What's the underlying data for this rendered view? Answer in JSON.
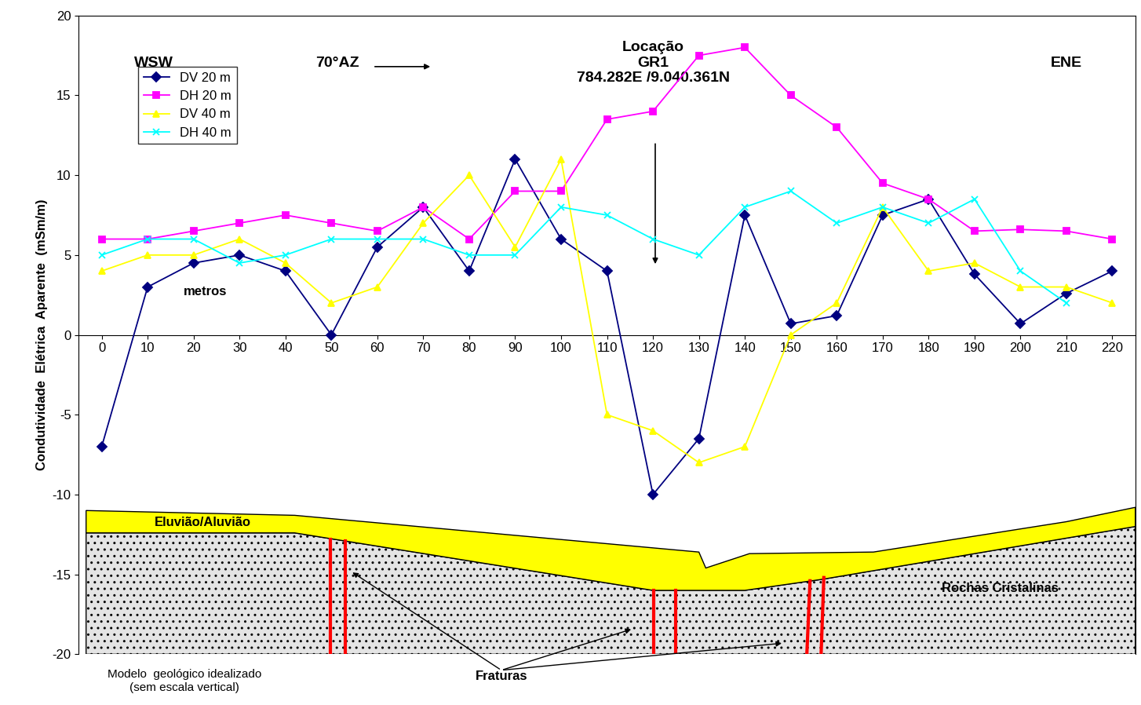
{
  "chart_data": {
    "type": "line",
    "x": [
      0,
      10,
      20,
      30,
      40,
      50,
      60,
      70,
      80,
      90,
      100,
      110,
      120,
      130,
      140,
      150,
      160,
      170,
      180,
      190,
      200,
      210,
      220
    ],
    "xlim": [
      -5,
      225
    ],
    "xticks": [
      0,
      10,
      20,
      30,
      40,
      50,
      60,
      70,
      80,
      90,
      100,
      110,
      120,
      130,
      140,
      150,
      160,
      170,
      180,
      190,
      200,
      210,
      220
    ],
    "ylim": [
      -20,
      20
    ],
    "yticks": [
      -20,
      -15,
      -10,
      -5,
      0,
      5,
      10,
      15,
      20
    ],
    "y_label": "Condutividade  Elétrica  Aparente  (mSm/m)",
    "legend": "upper left",
    "series": [
      {
        "name": "DV 20 m",
        "color": "#000080",
        "marker": "diamond",
        "line_style": "solid",
        "values": [
          -7,
          3,
          4.5,
          5,
          4,
          0,
          5.5,
          8,
          4,
          11,
          6,
          4,
          -10,
          -6.5,
          7.5,
          0.7,
          1.2,
          7.5,
          8.5,
          3.8,
          0.7,
          2.6,
          4
        ]
      },
      {
        "name": "DH 20 m",
        "color": "#ff00ff",
        "marker": "square",
        "line_style": "solid",
        "values": [
          6,
          6,
          6.5,
          7,
          7.5,
          7,
          6.5,
          8,
          6,
          9,
          9,
          13.5,
          14,
          17.5,
          18,
          15,
          13,
          9.5,
          8.5,
          6.5,
          6.6,
          6.5,
          6
        ]
      },
      {
        "name": "DV 40 m",
        "color": "#ffff00",
        "marker": "triangle",
        "line_style": "solid",
        "values": [
          4,
          5,
          5,
          6,
          4.5,
          2,
          3,
          7,
          10,
          5.5,
          11,
          -5,
          -6,
          -8,
          -7,
          0,
          2,
          8,
          4,
          4.5,
          3,
          3,
          2
        ]
      },
      {
        "name": "DH 40 m",
        "color": "#00ffff",
        "marker": "x",
        "line_style": "solid",
        "values": [
          5,
          6,
          6,
          4.5,
          5,
          6,
          6,
          6,
          5,
          5,
          8,
          7.5,
          6,
          5,
          8,
          9,
          7,
          8,
          7,
          8.5,
          4,
          2,
          null
        ]
      }
    ],
    "annotations": [
      "WSW",
      "ENE",
      "70°AZ",
      "Locação\nGR1\n784.282E /9.040.361N",
      "metros",
      "Eluvião/Aluvião",
      "Rochas Cristalinas",
      "Fraturas",
      "Modelo  geológico idealizado\n(sem escala vertical)"
    ]
  }
}
